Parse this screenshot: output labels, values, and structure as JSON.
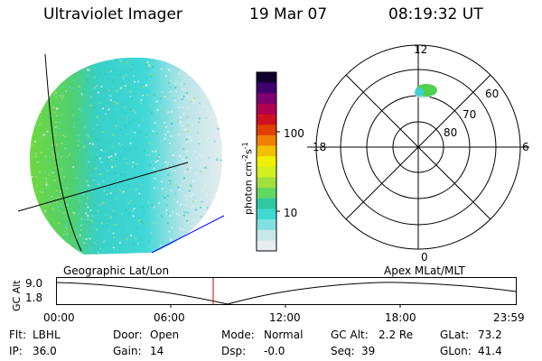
{
  "header": {
    "title": "Ultraviolet Imager",
    "date": "19 Mar 07",
    "time": "08:19:32 UT"
  },
  "colorbar": {
    "label_main": "photon cm",
    "label_exp1": "-2",
    "label_mid": "s",
    "label_exp2": "-1",
    "ticks": [
      "100",
      "10"
    ],
    "colors": [
      "#e8eef0",
      "#c8e8e8",
      "#80e0e0",
      "#40d8d0",
      "#30c8a0",
      "#60d860",
      "#a0e040",
      "#d0f020",
      "#f0f000",
      "#f0c000",
      "#f08000",
      "#e04000",
      "#d01020",
      "#b00050",
      "#800070",
      "#400070",
      "#100030"
    ]
  },
  "polar_plot": {
    "mlt_labels": [
      "12",
      "18",
      "6",
      "0"
    ],
    "lat_labels": [
      "60",
      "70",
      "80"
    ]
  },
  "geo_labels": {
    "left": "Geographic Lat/Lon",
    "right": "Apex MLat/MLT"
  },
  "altitude_panel": {
    "axis_label": "GC Alt",
    "y_ticks": [
      "9.0",
      "1.8"
    ],
    "x_ticks": [
      "00:00",
      "06:00",
      "12:00",
      "18:00",
      "23:59"
    ]
  },
  "info": {
    "flt_label": "Flt:",
    "flt_value": "LBHL",
    "ip_label": "IP:",
    "ip_value": "36.0",
    "door_label": "Door:",
    "door_value": "Open",
    "gain_label": "Gain:",
    "gain_value": "14",
    "mode_label": "Mode:",
    "mode_value": "Normal",
    "dsp_label": "Dsp:",
    "dsp_value": "-0.0",
    "gcalt_label": "GC Alt:",
    "gcalt_value": "2.2 Re",
    "seq_label": "Seq:",
    "seq_value": "39",
    "glat_label": "GLat:",
    "glat_value": "73.2",
    "glon_label": "GLon:",
    "glon_value": "41.4"
  }
}
